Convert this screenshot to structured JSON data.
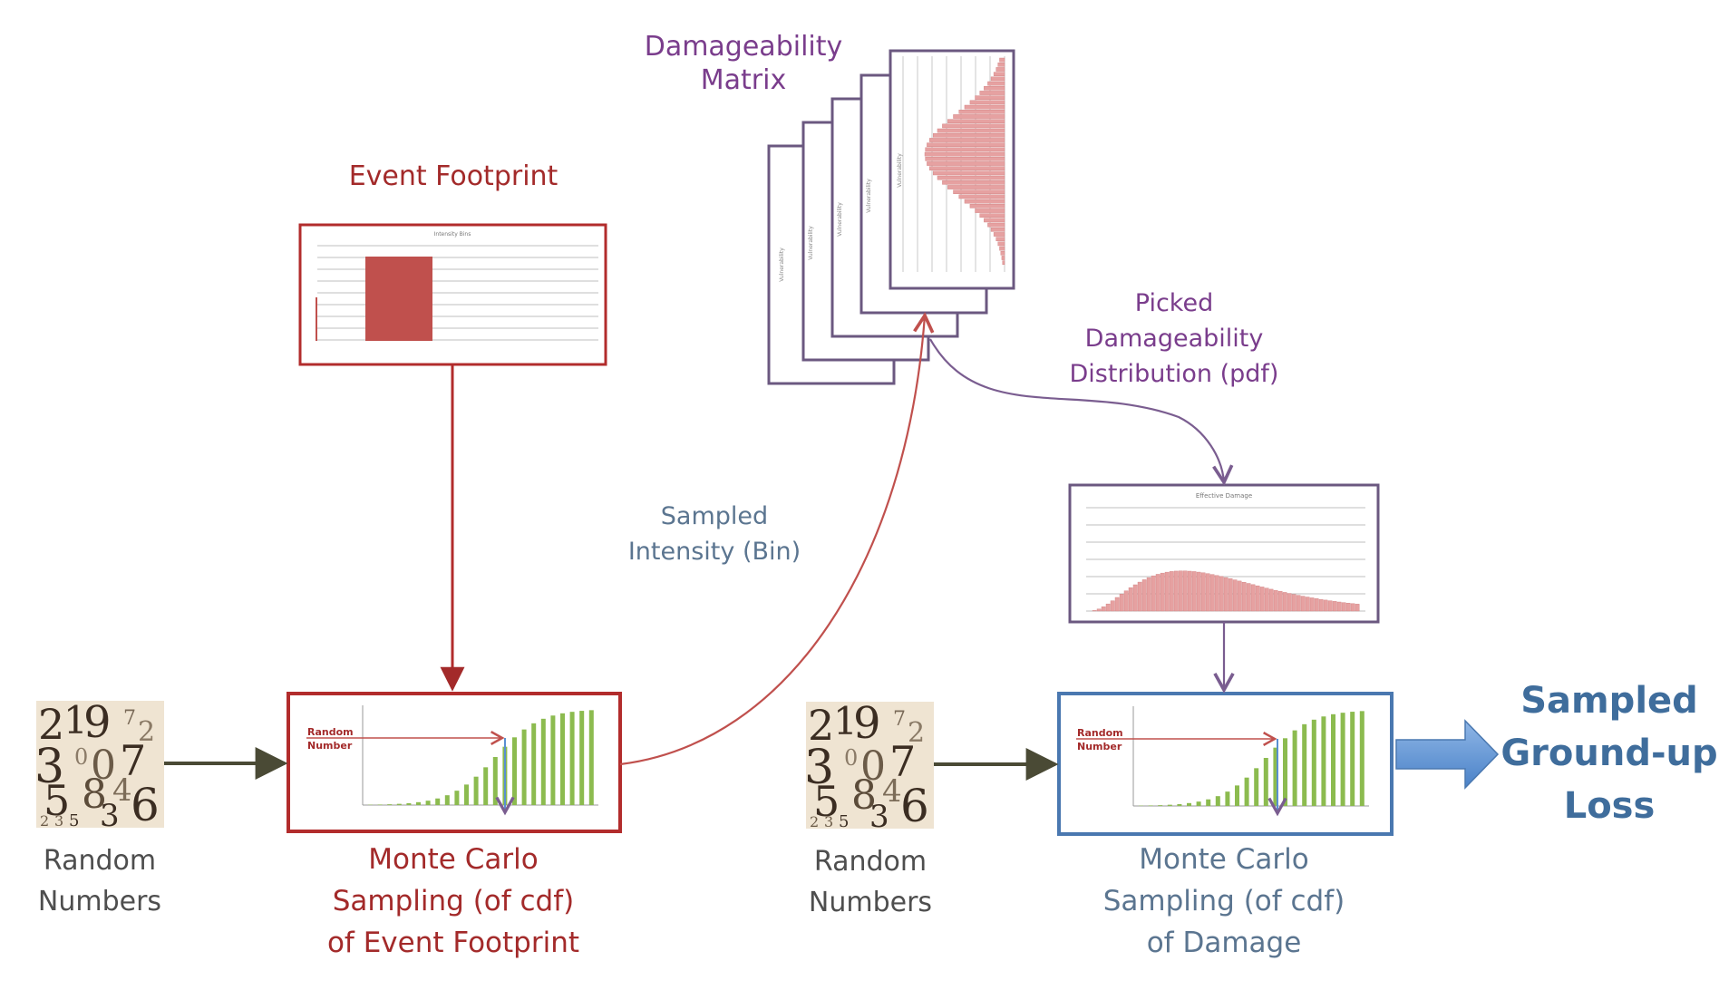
{
  "labels": {
    "damageability_matrix": [
      "Damageability",
      "Matrix"
    ],
    "event_footprint": "Event Footprint",
    "picked": [
      "Picked",
      "Damageability",
      "Distribution (pdf)"
    ],
    "sampled_intensity": [
      "Sampled",
      "Intensity (Bin)"
    ],
    "random_numbers_1": [
      "Random",
      "Numbers"
    ],
    "random_numbers_2": [
      "Random",
      "Numbers"
    ],
    "mc_event": [
      "Monte Carlo",
      "Sampling (of cdf)",
      "of Event Footprint"
    ],
    "mc_damage": [
      "Monte Carlo",
      "Sampling (of cdf)",
      "of Damage"
    ],
    "sampled_loss": [
      "Sampled",
      "Ground-up",
      "Loss"
    ]
  },
  "thumbnails": {
    "footprint_title": "Intensity Bins",
    "effective_damage_title": "Effective Damage",
    "matrix_card_label": "Vulnerability",
    "random_number_label": [
      "Random",
      "Number"
    ]
  },
  "colors": {
    "red": "#a32a2a",
    "purple": "#7a3d8c",
    "blue": "#3f6d9c",
    "arrow_dark": "#4a4a35",
    "bar_red": "#c0504d",
    "pdf_fill": "#e6a1a1",
    "cdf_green": "#8cbb4f"
  }
}
